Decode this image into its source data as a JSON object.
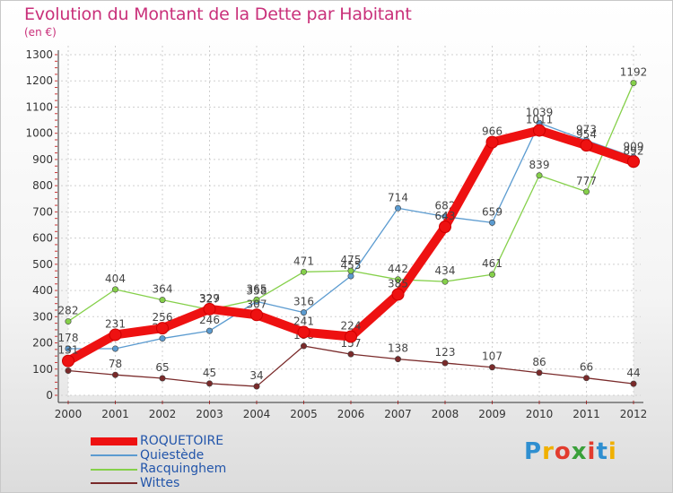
{
  "title": "Evolution du Montant de la Dette par Habitant",
  "subtitle": "(en €)",
  "logo": {
    "letters": [
      "P",
      "r",
      "o",
      "x",
      "i",
      "t",
      "i"
    ],
    "colors": [
      "#2f8fd0",
      "#f0b000",
      "#e23c2e",
      "#3aa03a",
      "#e23c2e",
      "#2f8fd0",
      "#f0b000"
    ]
  },
  "chart_data": {
    "type": "line",
    "title": "Evolution du Montant de la Dette par Habitant",
    "subtitle": "(en €)",
    "categories": [
      "2000",
      "2001",
      "2002",
      "2003",
      "2004",
      "2005",
      "2006",
      "2007",
      "2008",
      "2009",
      "2010",
      "2011",
      "2012"
    ],
    "ylim": [
      0,
      1300
    ],
    "yticks": [
      0,
      100,
      200,
      300,
      400,
      500,
      600,
      700,
      800,
      900,
      1000,
      1100,
      1200,
      1300
    ],
    "grid": true,
    "legend_placement": "bottom-left",
    "series": [
      {
        "name": "ROQUETOIRE",
        "color": "#ee1111",
        "emphasis": true,
        "values": [
          131,
          231,
          256,
          329,
          307,
          241,
          224,
          385,
          643,
          966,
          1011,
          954,
          892
        ],
        "labels": [
          "131",
          "231",
          "256",
          "329",
          "307",
          "241",
          "224",
          "385",
          "643",
          "966",
          "1011",
          "954",
          "892"
        ]
      },
      {
        "name": "Quiestède",
        "color": "#5b9bd0",
        "emphasis": false,
        "values": [
          178,
          178,
          217,
          246,
          358,
          316,
          455,
          714,
          682,
          659,
          1039,
          973,
          909
        ],
        "labels": [
          "178",
          "",
          "217",
          "246",
          "358",
          "316",
          "455",
          "714",
          "682",
          "659",
          "1039",
          "973",
          "909"
        ]
      },
      {
        "name": "Racquinghem",
        "color": "#85d04a",
        "emphasis": false,
        "values": [
          282,
          404,
          364,
          327,
          365,
          471,
          475,
          442,
          434,
          461,
          839,
          777,
          1192
        ],
        "labels": [
          "282",
          "404",
          "364",
          "327",
          "365",
          "471",
          "475",
          "442",
          "434",
          "461",
          "839",
          "777",
          "1192"
        ]
      },
      {
        "name": "Wittes",
        "color": "#7a2a2a",
        "emphasis": false,
        "values": [
          94,
          78,
          65,
          45,
          34,
          188,
          157,
          138,
          123,
          107,
          86,
          66,
          44
        ],
        "labels": [
          "",
          "78",
          "65",
          "45",
          "34",
          "188",
          "157",
          "138",
          "123",
          "107",
          "86",
          "66",
          "44"
        ]
      }
    ]
  }
}
